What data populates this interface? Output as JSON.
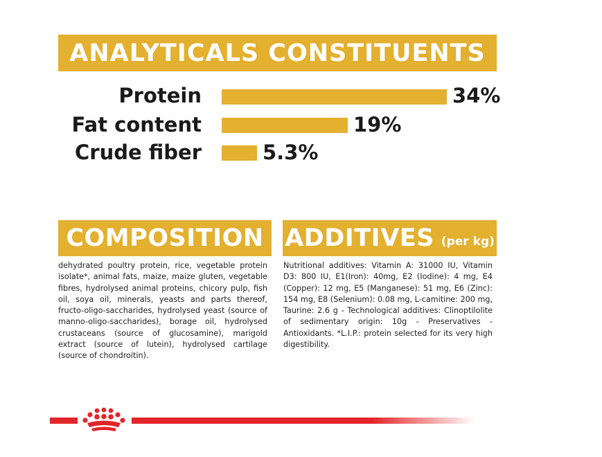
{
  "analyticals": {
    "title": "ANALYTICALS CONSTITUENTS",
    "rows": [
      {
        "label": "Protein",
        "value": "34%",
        "percent": 34
      },
      {
        "label": "Fat content",
        "value": "19%",
        "percent": 19
      },
      {
        "label": "Crude fiber",
        "value": "5.3%",
        "percent": 5.3
      }
    ]
  },
  "composition": {
    "title": "COMPOSITION",
    "text": "dehydrated poultry protein, rice, vegetable protein isolate*, animal fats, maize, maize gluten, vegetable fibres, hydrolysed animal proteins, chicory pulp, fish oil, soya oil, minerals, yeasts and parts thereof, fructo-oligo-saccharides, hydrolysed yeast (source of manno-oligo-saccharides), borage oil, hydrolysed crustaceans (source of glucosamine), marigold extract (source of lutein), hydrolysed cartilage (source of chondroitin)."
  },
  "additives": {
    "title": "ADDITIVES",
    "title_suffix": "(per kg)",
    "text": "Nutritional additives: Vitamin A: 31000 IU, Vitamin D3: 800 IU, E1(Iron): 40mg, E2 (Iodine): 4 mg, E4 (Copper): 12 mg, E5 (Manganese): 51 mg, E6 (Zinc): 154 mg, E8 (Selenium): 0.08 mg, L-camitine: 200 mg, Taurine: 2.6 g - Technological additives: Clinoptilolite of sedimentary origin: 10g - Preservatives - Antioxidants. *L.I.P.: protein selected for its very high digestibility."
  },
  "colors": {
    "accent": "#e3b02f",
    "brand_red": "#e2252b"
  },
  "footer": {
    "logo_icon": "royal-canin-crown-icon"
  }
}
